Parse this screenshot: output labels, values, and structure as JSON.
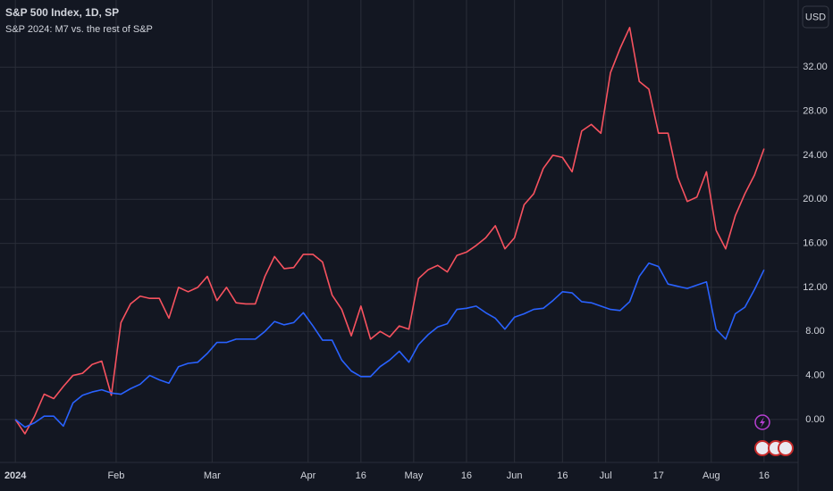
{
  "chart_data": {
    "type": "line",
    "title": "S&P 500 Index, 1D, SP",
    "subtitle": "S&P 2024: M7 vs. the rest of S&P",
    "currency": "USD",
    "x": [
      0,
      2,
      4,
      6,
      8,
      10,
      12,
      14,
      16,
      18,
      20,
      22,
      24,
      26,
      28,
      30,
      32,
      34,
      36,
      38,
      40,
      42,
      44,
      46,
      48,
      50,
      52,
      54,
      56,
      58,
      60,
      62,
      64,
      66,
      68,
      70,
      72,
      74,
      76,
      78,
      80,
      82,
      84,
      86,
      88,
      90,
      92,
      94,
      96,
      98,
      100,
      102,
      104,
      106,
      108,
      110,
      112,
      114,
      116,
      118,
      120,
      122,
      124,
      126,
      128,
      130,
      132,
      134,
      136,
      138,
      140,
      142,
      144,
      146,
      148,
      150,
      152,
      154,
      156
    ],
    "series": [
      {
        "color": "#f7525f",
        "values": [
          0,
          -1.3,
          0.3,
          2.3,
          1.9,
          3,
          4,
          4.2,
          5,
          5.3,
          2.2,
          8.8,
          10.5,
          11.2,
          11,
          11,
          9.2,
          12,
          11.6,
          12,
          13,
          10.8,
          12,
          10.6,
          10.5,
          10.5,
          13,
          14.8,
          13.7,
          13.8,
          15,
          15,
          14.3,
          11.3,
          10,
          7.6,
          10.3,
          7.3,
          8,
          7.5,
          8.5,
          8.2,
          12.8,
          13.6,
          14,
          13.4,
          14.9,
          15.2,
          15.8,
          16.5,
          17.6,
          15.5,
          16.5,
          19.5,
          20.5,
          22.8,
          24,
          23.8,
          22.5,
          26.2,
          26.8,
          26,
          31.5,
          33.7,
          35.6,
          30.7,
          30,
          26,
          26,
          22,
          19.8,
          20.2,
          22.5,
          17.2,
          15.5,
          18.5,
          20.5,
          22.2,
          24.6
        ]
      },
      {
        "color": "#2962ff",
        "values": [
          0,
          -0.7,
          -0.3,
          0.3,
          0.3,
          -0.6,
          1.5,
          2.2,
          2.5,
          2.7,
          2.4,
          2.3,
          2.8,
          3.2,
          4,
          3.6,
          3.3,
          4.8,
          5.1,
          5.2,
          6,
          7,
          7,
          7.3,
          7.3,
          7.3,
          8,
          8.9,
          8.6,
          8.8,
          9.7,
          8.5,
          7.2,
          7.2,
          5.4,
          4.4,
          3.9,
          3.9,
          4.8,
          5.4,
          6.2,
          5.2,
          6.8,
          7.7,
          8.4,
          8.7,
          10,
          10.1,
          10.3,
          9.7,
          9.2,
          8.2,
          9.3,
          9.6,
          10,
          10.1,
          10.8,
          11.6,
          11.5,
          10.7,
          10.6,
          10.3,
          10,
          9.9,
          10.7,
          13,
          14.2,
          13.9,
          12.3,
          12.1,
          11.9,
          12.2,
          12.5,
          8.2,
          7.3,
          9.6,
          10.2,
          11.8,
          13.6
        ]
      }
    ],
    "xlim": [
      -3.2,
      163.1
    ],
    "xticks": [
      {
        "value": 0,
        "label": "2024"
      },
      {
        "value": 21,
        "label": "Feb"
      },
      {
        "value": 41,
        "label": "Mar"
      },
      {
        "value": 61,
        "label": "Apr"
      },
      {
        "value": 72,
        "label": "16"
      },
      {
        "value": 83,
        "label": "May"
      },
      {
        "value": 94,
        "label": "16"
      },
      {
        "value": 104,
        "label": "Jun"
      },
      {
        "value": 114,
        "label": "16"
      },
      {
        "value": 123,
        "label": "Jul"
      },
      {
        "value": 134,
        "label": "17"
      },
      {
        "value": 145,
        "label": "Aug"
      },
      {
        "value": 156,
        "label": "16"
      }
    ],
    "ylim": [
      -3.9,
      38.1
    ],
    "yticks": [
      {
        "value": 0,
        "label": "0.00"
      },
      {
        "value": 4,
        "label": "4.00"
      },
      {
        "value": 8,
        "label": "8.00"
      },
      {
        "value": 12,
        "label": "12.00"
      },
      {
        "value": 16,
        "label": "16.00"
      },
      {
        "value": 20,
        "label": "20.00"
      },
      {
        "value": 24,
        "label": "24.00"
      },
      {
        "value": 28,
        "label": "28.00"
      },
      {
        "value": 32,
        "label": "32.00"
      }
    ],
    "grid": true
  }
}
